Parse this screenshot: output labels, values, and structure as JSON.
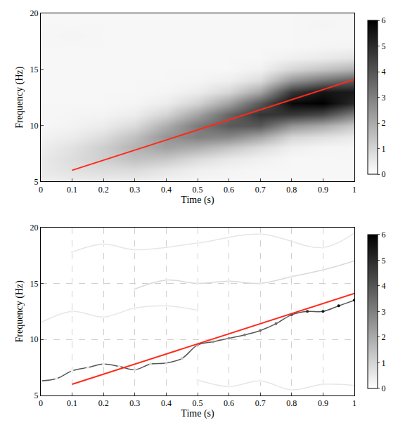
{
  "chart_data": [
    {
      "type": "heatmap",
      "xlabel": "Time (s)",
      "ylabel": "Frequency (Hz)",
      "xlim": [
        0,
        1
      ],
      "ylim": [
        5,
        20
      ],
      "xticks": [
        0,
        0.1,
        0.2,
        0.3,
        0.4,
        0.5,
        0.6,
        0.7,
        0.8,
        0.9,
        1
      ],
      "yticks": [
        5,
        10,
        15,
        20
      ],
      "grid": false,
      "x": [
        0,
        0.1,
        0.2,
        0.3,
        0.4,
        0.5,
        0.6,
        0.7,
        0.8,
        0.9,
        1
      ],
      "y": [
        5,
        6,
        7,
        8,
        9,
        10,
        11,
        12,
        13,
        14,
        15,
        16,
        17,
        18,
        19,
        20
      ],
      "z": [
        [
          0.4,
          0.45,
          0.45,
          0.42,
          0.3,
          0.22,
          0.2,
          0.2,
          0.2,
          0.2,
          0.2
        ],
        [
          0.5,
          0.7,
          0.81,
          0.86,
          0.6,
          0.38,
          0.27,
          0.2,
          0.2,
          0.2,
          0.2
        ],
        [
          0.5,
          0.8,
          1.15,
          1.48,
          1.33,
          0.86,
          0.54,
          0.34,
          0.2,
          0.2,
          0.2
        ],
        [
          0.4,
          0.7,
          1.15,
          1.8,
          2.2,
          1.9,
          1.38,
          0.84,
          0.37,
          0.25,
          0.22
        ],
        [
          0.3,
          0.45,
          0.81,
          1.48,
          2.5,
          2.96,
          2.8,
          2.1,
          0.98,
          0.73,
          0.47
        ],
        [
          0.2,
          0.28,
          0.45,
          0.86,
          1.9,
          3.1,
          3.9,
          3.9,
          2.5,
          2.0,
          1.26
        ],
        [
          0.2,
          0.24,
          0.27,
          0.42,
          1.0,
          2.15,
          3.6,
          4.8,
          4.7,
          4.3,
          3.0
        ],
        [
          0.2,
          0.2,
          0.2,
          0.25,
          0.43,
          1.04,
          2.2,
          3.9,
          5.8,
          6.0,
          5.0
        ],
        [
          0.2,
          0.2,
          0.2,
          0.2,
          0.25,
          0.44,
          0.96,
          2.1,
          4.7,
          5.5,
          5.4
        ],
        [
          0.2,
          0.2,
          0.2,
          0.2,
          0.2,
          0.25,
          0.4,
          0.84,
          2.5,
          3.3,
          3.9
        ],
        [
          0.2,
          0.2,
          0.2,
          0.2,
          0.2,
          0.2,
          0.2,
          0.34,
          0.98,
          1.4,
          1.84
        ],
        [
          0.2,
          0.2,
          0.2,
          0.2,
          0.2,
          0.2,
          0.2,
          0.2,
          0.37,
          0.5,
          0.68
        ],
        [
          0.2,
          0.2,
          0.2,
          0.2,
          0.2,
          0.2,
          0.2,
          0.2,
          0.2,
          0.25,
          0.28
        ],
        [
          0.2,
          0.25,
          0.2,
          0.2,
          0.2,
          0.2,
          0.2,
          0.2,
          0.2,
          0.2,
          0.2
        ],
        [
          0.2,
          0.2,
          0.2,
          0.2,
          0.2,
          0.2,
          0.2,
          0.2,
          0.2,
          0.25,
          0.2
        ],
        [
          0.2,
          0.2,
          0.2,
          0.2,
          0.2,
          0.2,
          0.2,
          0.2,
          0.2,
          0.2,
          0.2
        ]
      ],
      "colorbar": {
        "range": [
          0,
          6
        ],
        "ticks": [
          0,
          1,
          2,
          3,
          4,
          5,
          6
        ]
      },
      "series": [
        {
          "type": "line",
          "color": "#ff2a1a",
          "x": [
            0.1,
            1
          ],
          "values": [
            6,
            14.1
          ]
        }
      ]
    },
    {
      "type": "line",
      "xlabel": "Time (s)",
      "ylabel": "Frequency (Hz)",
      "xlim": [
        0,
        1
      ],
      "ylim": [
        5,
        20
      ],
      "xticks": [
        0,
        0.1,
        0.2,
        0.3,
        0.4,
        0.5,
        0.6,
        0.7,
        0.8,
        0.9,
        1
      ],
      "yticks": [
        5,
        10,
        15,
        20
      ],
      "grid": true,
      "colorbar": {
        "range": [
          0,
          6
        ],
        "ticks": [
          0,
          1,
          2,
          3,
          4,
          5,
          6
        ]
      },
      "series": [
        {
          "color": "#d9d9d9",
          "x": [
            0.3,
            0.4,
            0.5,
            0.6,
            0.7,
            0.8,
            0.9,
            1.0
          ],
          "values": [
            14.5,
            15.3,
            15.0,
            15.2,
            15.0,
            15.6,
            16.2,
            17.0
          ],
          "amplitude": [
            0.5,
            0.5,
            0.5,
            0.5,
            0.5,
            0.5,
            0.5,
            0.5
          ]
        },
        {
          "color": "#e6e6e6",
          "x": [
            0.1,
            0.2,
            0.3,
            0.5,
            0.7,
            0.9,
            1.0
          ],
          "values": [
            17.8,
            18.5,
            18.0,
            18.6,
            19.4,
            18.2,
            19.5
          ],
          "amplitude": [
            0.3,
            0.3,
            0.3,
            0.3,
            0.3,
            0.3,
            0.3
          ]
        },
        {
          "color": "#e6e6e6",
          "x": [
            0.5,
            0.6,
            0.7,
            0.8,
            0.9,
            1.0
          ],
          "values": [
            6.4,
            5.8,
            6.3,
            5.5,
            6.0,
            5.9
          ],
          "amplitude": [
            0.3,
            0.3,
            0.3,
            0.3,
            0.3,
            0.3
          ]
        },
        {
          "color": "#e6e6e6",
          "x": [
            0,
            0.1,
            0.2,
            0.3,
            0.4,
            0.5
          ],
          "values": [
            11.5,
            12.5,
            12.0,
            12.8,
            13.0,
            12.6
          ],
          "amplitude": [
            0.3,
            0.3,
            0.3,
            0.3,
            0.3,
            0.3
          ]
        },
        {
          "color": "#555555",
          "x": [
            0,
            0.05,
            0.1,
            0.15,
            0.2,
            0.25,
            0.3,
            0.35,
            0.4,
            0.45,
            0.5,
            0.55,
            0.6,
            0.65,
            0.7,
            0.75,
            0.8,
            0.85,
            0.9,
            0.95,
            1.0
          ],
          "values": [
            6.3,
            6.5,
            7.2,
            7.5,
            7.8,
            7.6,
            7.3,
            7.8,
            7.9,
            8.3,
            9.5,
            9.8,
            10.1,
            10.4,
            10.8,
            11.4,
            12.2,
            12.5,
            12.5,
            13.0,
            13.5
          ],
          "amplitude": [
            0.3,
            0.3,
            0.4,
            0.4,
            0.5,
            0.6,
            0.8,
            1.0,
            1.2,
            1.4,
            2.0,
            2.3,
            2.6,
            3.0,
            3.3,
            3.6,
            4.2,
            5.0,
            5.5,
            5.8,
            6.0
          ]
        },
        {
          "type": "line",
          "color": "#ff2a1a",
          "x": [
            0.1,
            1
          ],
          "values": [
            6,
            14.1
          ]
        }
      ]
    }
  ]
}
